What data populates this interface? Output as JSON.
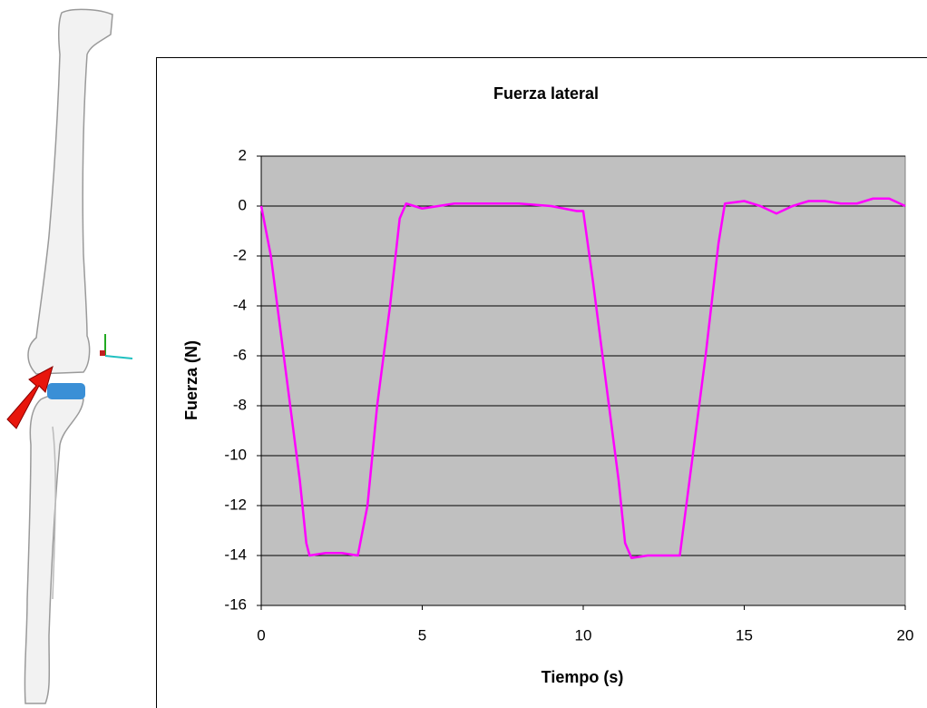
{
  "chart_data": {
    "type": "line",
    "title": "Fuerza lateral",
    "x_label": "Tiempo (s)",
    "y_label": "Fuerza (N)",
    "x": [
      0,
      0.3,
      0.6,
      0.9,
      1.2,
      1.4,
      1.5,
      2,
      2.5,
      3,
      3.3,
      3.6,
      4,
      4.3,
      4.5,
      5,
      6,
      7,
      8,
      9,
      9.8,
      10,
      10.3,
      10.7,
      11.1,
      11.3,
      11.5,
      12,
      13,
      13.3,
      13.8,
      14.2,
      14.4,
      15,
      15.5,
      16,
      16.5,
      17,
      17.5,
      18,
      18.5,
      19,
      19.5,
      20
    ],
    "values": [
      0,
      -2,
      -5,
      -8,
      -11,
      -13.5,
      -14,
      -13.9,
      -13.9,
      -14,
      -12,
      -8,
      -4,
      -0.5,
      0.1,
      -0.1,
      0.1,
      0.1,
      0.1,
      0,
      -0.2,
      -0.2,
      -3,
      -7,
      -11,
      -13.5,
      -14.1,
      -14,
      -14,
      -11,
      -6,
      -1.5,
      0.1,
      0.2,
      0,
      -0.3,
      0,
      0.2,
      0.2,
      0.1,
      0.1,
      0.3,
      0.3,
      0
    ],
    "color": "#ff00ff",
    "plot_background": "#c0c0c0",
    "grid": true,
    "xlim": [
      0,
      20
    ],
    "xticks": [
      0,
      5,
      10,
      15,
      20
    ],
    "ylim": [
      -16,
      2
    ],
    "yticks": [
      -16,
      -14,
      -12,
      -10,
      -8,
      -6,
      -4,
      -2,
      0,
      2
    ]
  }
}
